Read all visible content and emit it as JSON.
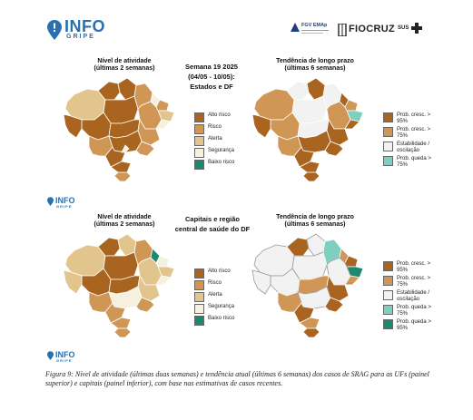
{
  "header": {
    "logo_main": "INFO",
    "logo_sub": "GRIPE",
    "partner_fgv": "FGV EMAp",
    "partner_fiocruz": "FIOCRUZ",
    "partner_sus": "SUS"
  },
  "top_panel": {
    "left_title_line1": "Nível de atividade",
    "left_title_line2": "(últimas 2 semanas)",
    "center_line1": "Semana 19 2025",
    "center_line2": "(04/05 - 10/05):",
    "center_line3": "Estados e DF",
    "right_title_line1": "Tendência de longo prazo",
    "right_title_line2": "(últimas 6 semanas)",
    "activity_legend": [
      {
        "label": "Alto risco",
        "color": "#a9641f"
      },
      {
        "label": "Risco",
        "color": "#cf9656"
      },
      {
        "label": "Alerta",
        "color": "#e2c58c"
      },
      {
        "label": "Segurança",
        "color": "#f6f1df"
      },
      {
        "label": "Baixo risco",
        "color": "#1a8a6f"
      }
    ],
    "trend_legend": [
      {
        "label": "Prob. cresc. > 95%",
        "color": "#a9641f"
      },
      {
        "label": "Prob. cresc. > 75%",
        "color": "#cf9656"
      },
      {
        "label": "Estabilidade / oscilação",
        "color": "#f2f2f2"
      },
      {
        "label": "Prob. queda > 75%",
        "color": "#7fcfc0"
      }
    ]
  },
  "bottom_panel": {
    "left_title_line1": "Nível de atividade",
    "left_title_line2": "(últimas 2 semanas)",
    "center_line1": "Capitais e região",
    "center_line2": "central de saúde do DF",
    "right_title_line1": "Tendência de longo prazo",
    "right_title_line2": "(últimas 6 semanas)",
    "activity_legend": [
      {
        "label": "Alto risco",
        "color": "#a9641f"
      },
      {
        "label": "Risco",
        "color": "#cf9656"
      },
      {
        "label": "Alerta",
        "color": "#e2c58c"
      },
      {
        "label": "Segurança",
        "color": "#f6f1df"
      },
      {
        "label": "Baixo risco",
        "color": "#1a8a6f"
      }
    ],
    "trend_legend": [
      {
        "label": "Prob. cresc. > 95%",
        "color": "#a9641f"
      },
      {
        "label": "Prob. cresc. > 75%",
        "color": "#cf9656"
      },
      {
        "label": "Estabilidade / oscilação",
        "color": "#f2f2f2"
      },
      {
        "label": "Prob. queda > 75%",
        "color": "#7fcfc0"
      },
      {
        "label": "Prob. queda > 95%",
        "color": "#1a8a6f"
      }
    ]
  },
  "small_logo": {
    "main": "INFO",
    "sub": "GRIPE"
  },
  "caption": "Figura 9: Nível de atividade (últimas duas semanas) e tendência atual (últimas 6 semanas) dos casos de SRAG para as UFs (painel superior) e capitais (painel inferior), com base nas estimativas de casos recentes."
}
